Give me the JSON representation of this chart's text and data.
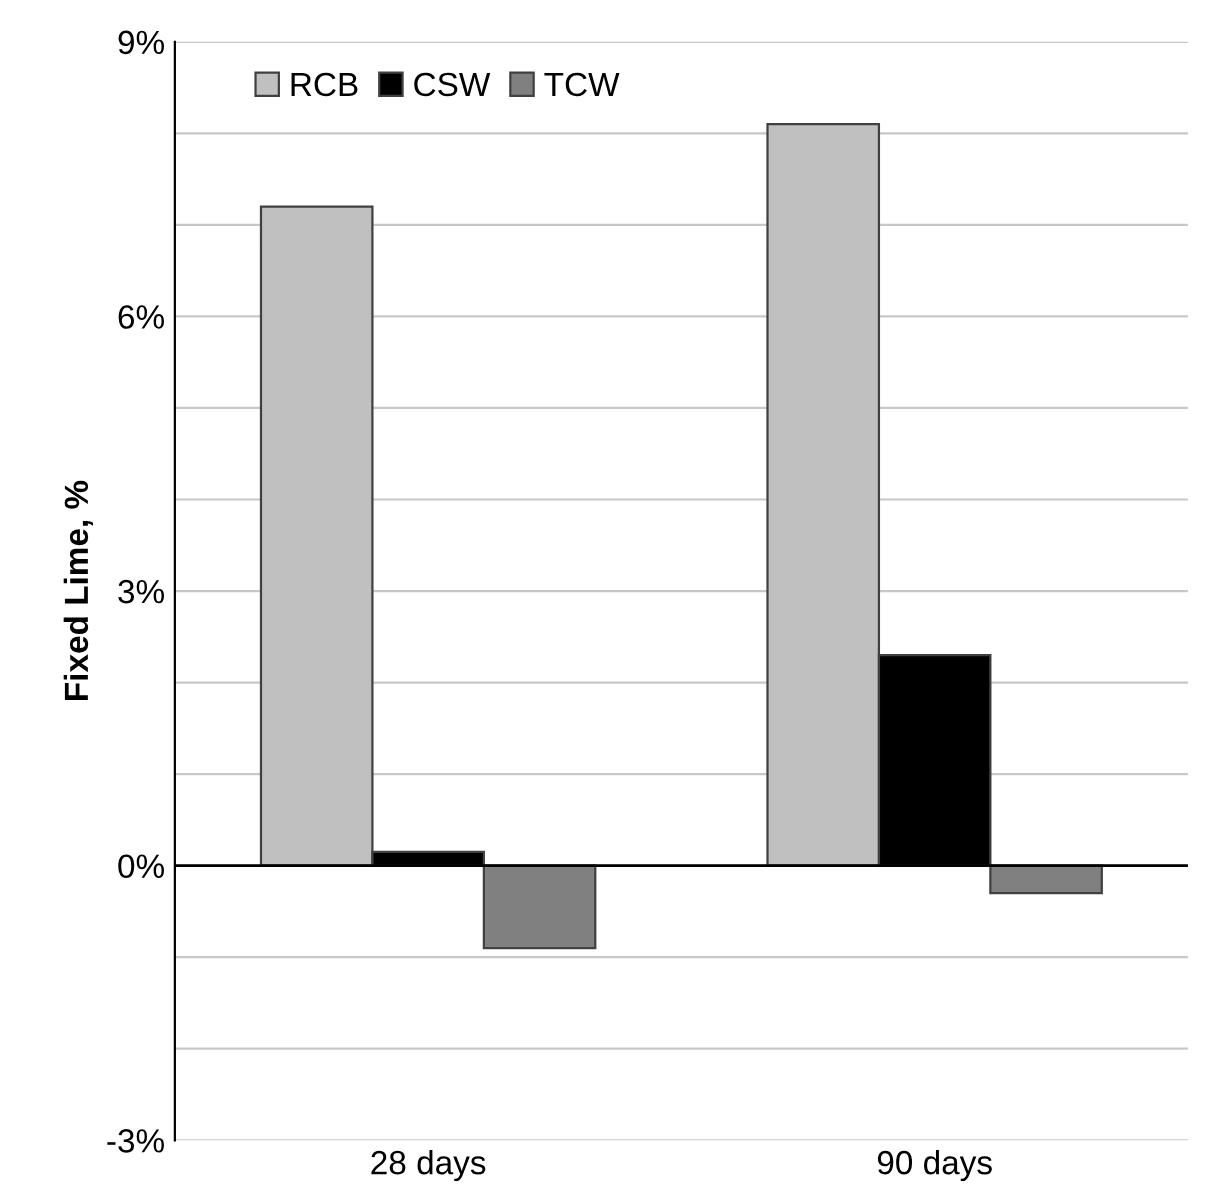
{
  "chart_data": {
    "type": "bar",
    "ylabel": "Fixed Lime, %",
    "categories": [
      "28 days",
      "90 days"
    ],
    "series": [
      {
        "name": "RCB",
        "color": "#c0c0c0",
        "values": [
          7.2,
          8.1
        ]
      },
      {
        "name": "CSW",
        "color": "#000000",
        "values": [
          0.15,
          2.3
        ]
      },
      {
        "name": "TCW",
        "color": "#808080",
        "values": [
          -0.9,
          -0.3
        ]
      }
    ],
    "ylim": [
      -3,
      9
    ],
    "yticks": [
      {
        "value": -3,
        "label": "-3%"
      },
      {
        "value": -2,
        "label": null
      },
      {
        "value": -1,
        "label": null
      },
      {
        "value": 0,
        "label": "0%"
      },
      {
        "value": 1,
        "label": null
      },
      {
        "value": 2,
        "label": null
      },
      {
        "value": 3,
        "label": "3%"
      },
      {
        "value": 4,
        "label": null
      },
      {
        "value": 5,
        "label": null
      },
      {
        "value": 6,
        "label": "6%"
      },
      {
        "value": 7,
        "label": null
      },
      {
        "value": 8,
        "label": null
      },
      {
        "value": 9,
        "label": "9%"
      }
    ],
    "grid": "y",
    "legend": "top left"
  }
}
